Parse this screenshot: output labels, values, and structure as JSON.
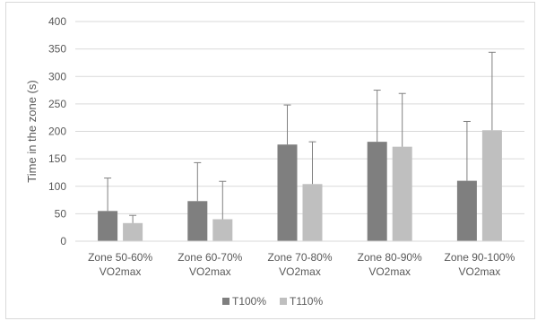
{
  "chart_data": {
    "type": "bar",
    "title": "",
    "xlabel": "",
    "ylabel": "Time in the zone (s)",
    "ylim": [
      0,
      400
    ],
    "yticks": [
      0,
      50,
      100,
      150,
      200,
      250,
      300,
      350,
      400
    ],
    "grid": true,
    "legend_position": "bottom",
    "categories": [
      [
        "Zone 50-60%",
        "VO2max"
      ],
      [
        "Zone 60-70%",
        "VO2max"
      ],
      [
        "Zone 70-80%",
        "VO2max"
      ],
      [
        "Zone 80-90%",
        "VO2max"
      ],
      [
        "Zone 90-100%",
        "VO2max"
      ]
    ],
    "series": [
      {
        "name": "T100%",
        "color": "#7f7f7f",
        "values": [
          55,
          73,
          176,
          181,
          110
        ],
        "error_plus": [
          60,
          70,
          72,
          94,
          108
        ]
      },
      {
        "name": "T110%",
        "color": "#bfbfbf",
        "values": [
          33,
          40,
          104,
          172,
          202
        ],
        "error_plus": [
          14,
          69,
          77,
          97,
          142
        ]
      }
    ]
  }
}
